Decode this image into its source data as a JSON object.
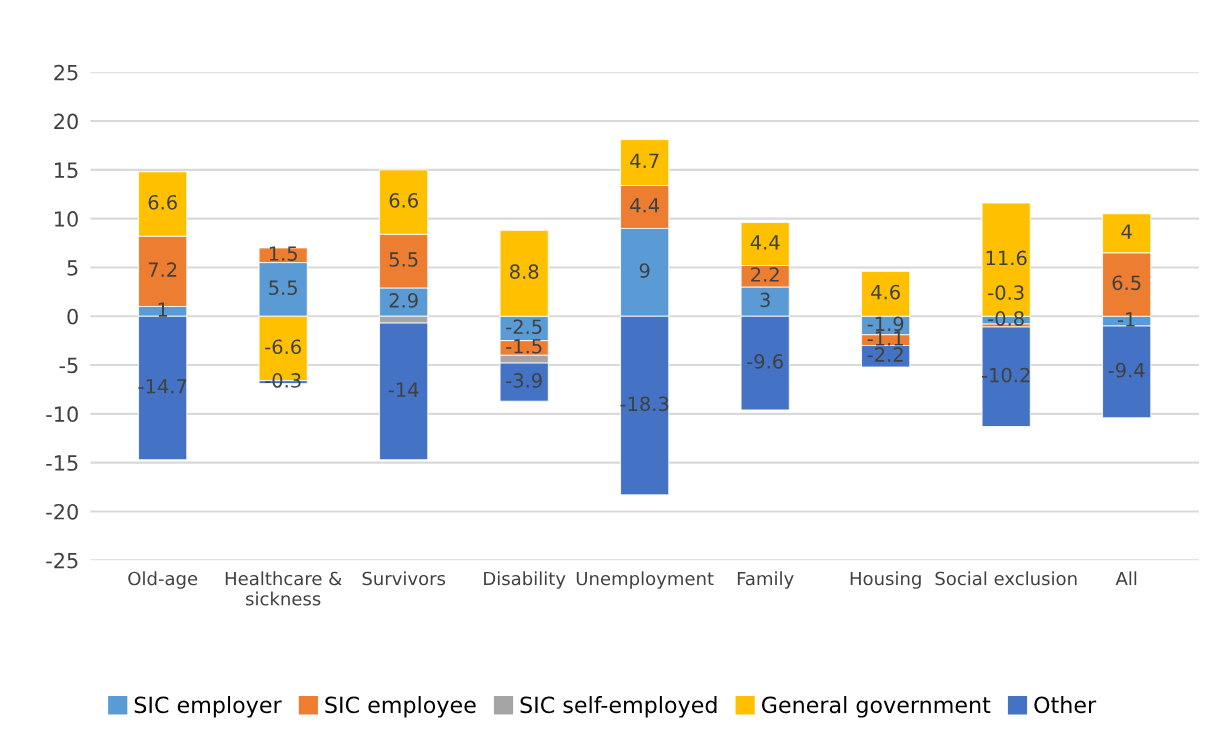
{
  "chart_data": {
    "type": "bar",
    "stacked": true,
    "categories": [
      "Old-age",
      "Healthcare & sickness",
      "Survivors",
      "Disability",
      "Unemployment",
      "Family",
      "Housing",
      "Social exclusion",
      "All"
    ],
    "series": [
      {
        "name": "SIC employer",
        "color": "#5b9bd5",
        "values": [
          1,
          5.5,
          2.9,
          -2.5,
          9,
          3,
          -1.9,
          -0.8,
          -1
        ]
      },
      {
        "name": "SIC employee",
        "color": "#ed7d31",
        "values": [
          7.2,
          1.5,
          5.5,
          -1.5,
          4.4,
          2.2,
          -1.1,
          -0.3,
          6.5
        ]
      },
      {
        "name": "SIC self-employed",
        "color": "#a5a5a5",
        "values": [
          null,
          null,
          -0.7,
          -0.8,
          null,
          null,
          null,
          null,
          null
        ],
        "value_labels": [
          null,
          null,
          null,
          null,
          null,
          null,
          null,
          null,
          null
        ]
      },
      {
        "name": "General government",
        "color": "#ffc000",
        "values": [
          6.6,
          -6.6,
          6.6,
          8.8,
          4.7,
          4.4,
          4.6,
          11.6,
          4
        ]
      },
      {
        "name": "Other",
        "color": "#4472c4",
        "values": [
          -14.7,
          -0.3,
          -14,
          -3.9,
          -18.3,
          -9.6,
          -2.2,
          -10.2,
          -9.4
        ]
      }
    ],
    "data_labels": true,
    "ylim": [
      -25,
      25
    ],
    "yticks": [
      -25,
      -20,
      -15,
      -10,
      -5,
      0,
      5,
      10,
      15,
      20,
      25
    ],
    "grid": "y",
    "legend": "bottom"
  }
}
